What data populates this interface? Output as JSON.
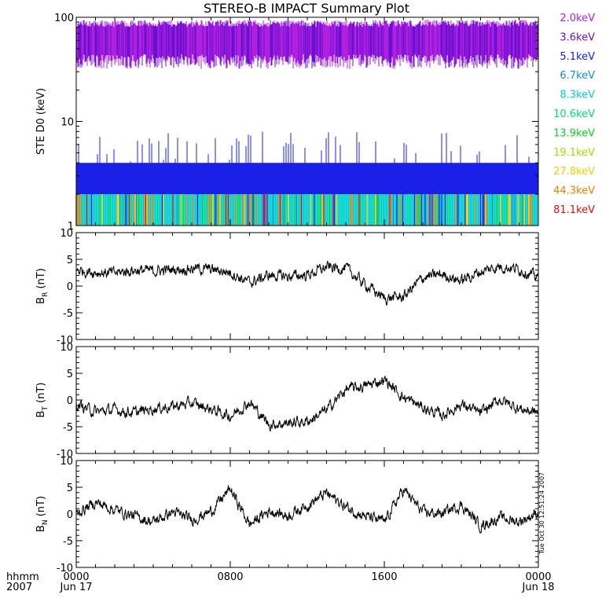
{
  "chart_data": {
    "title": "STEREO-B IMPACT Summary Plot",
    "type": "line",
    "x_axis": {
      "label_time": "hhmm",
      "label_year": "2007",
      "ticks": [
        {
          "hours": 0,
          "label": "0000",
          "date": "Jun 17"
        },
        {
          "hours": 8,
          "label": "0800",
          "date": ""
        },
        {
          "hours": 16,
          "label": "1600",
          "date": ""
        },
        {
          "hours": 24,
          "label": "0000",
          "date": "Jun 18"
        }
      ],
      "range_hours": [
        0,
        24
      ]
    },
    "timestamp": "Tue Oct 30 12:51:24 2007",
    "panels": [
      {
        "id": "ste",
        "type": "line",
        "ylabel": "STE D0 (keV)",
        "scale": "log",
        "ylim": [
          1,
          100
        ],
        "ytick_labels": [
          "1",
          "10",
          "100"
        ],
        "series": [
          {
            "name": "2.0keV",
            "color": "#b020e0"
          },
          {
            "name": "3.6keV",
            "color": "#6a10d0"
          },
          {
            "name": "5.1keV",
            "color": "#1a20e8"
          },
          {
            "name": "6.7keV",
            "color": "#1090e0"
          },
          {
            "name": "8.3keV",
            "color": "#00d0d0"
          },
          {
            "name": "10.6keV",
            "color": "#00e070"
          },
          {
            "name": "13.9keV",
            "color": "#10d020"
          },
          {
            "name": "19.1keV",
            "color": "#a0e000"
          },
          {
            "name": "27.8keV",
            "color": "#f0d000"
          },
          {
            "name": "44.3keV",
            "color": "#f08000"
          },
          {
            "name": "81.1keV",
            "color": "#e01010"
          }
        ],
        "levels": {
          "purple_band": [
            40,
            90
          ],
          "blue_spikes_max": 8,
          "blue_band": [
            2,
            4
          ],
          "cyan_band": [
            1,
            2
          ]
        }
      },
      {
        "id": "br",
        "ylabel": "B",
        "ylabel_sub": "R",
        "ylabel_unit": "(nT)",
        "ylim": [
          -10,
          10
        ],
        "ytick_labels": [
          "-10",
          "-5",
          "0",
          "5",
          "10"
        ],
        "values_hourly": [
          3.0,
          2.6,
          2.4,
          3.0,
          2.8,
          3.1,
          3.3,
          3.1,
          2.6,
          0.6,
          2.0,
          1.8,
          2.1,
          3.5,
          3.3,
          0.3,
          -2.3,
          -2.0,
          1.6,
          2.2,
          1.0,
          2.7,
          3.7,
          3.2,
          1.5
        ]
      },
      {
        "id": "bt",
        "ylabel": "B",
        "ylabel_sub": "T",
        "ylabel_unit": "(nT)",
        "ylim": [
          -10,
          10
        ],
        "ytick_labels": [
          "-10",
          "-5",
          "0",
          "5",
          "10"
        ],
        "values_hourly": [
          -0.8,
          -2.2,
          -1.8,
          -2.4,
          -1.6,
          -1.2,
          -0.6,
          -1.7,
          -3.0,
          -0.4,
          -4.6,
          -4.3,
          -4.0,
          -1.9,
          2.0,
          2.6,
          3.8,
          0.5,
          -1.4,
          -2.9,
          -0.8,
          -2.5,
          0.1,
          -1.6,
          -2.4
        ]
      },
      {
        "id": "bn",
        "ylabel": "B",
        "ylabel_sub": "N",
        "ylabel_unit": "(nT)",
        "ylim": [
          -10,
          10
        ],
        "ytick_labels": [
          "-10",
          "-5",
          "0",
          "5",
          "10"
        ],
        "values_hourly": [
          0.0,
          2.2,
          0.8,
          -0.4,
          -1.5,
          0.4,
          -1.1,
          0.5,
          4.7,
          -2.0,
          0.6,
          -0.3,
          1.7,
          3.9,
          1.3,
          -0.4,
          -1.5,
          4.6,
          0.3,
          0.1,
          1.7,
          -2.2,
          -0.7,
          -1.4,
          0.3
        ]
      }
    ]
  }
}
